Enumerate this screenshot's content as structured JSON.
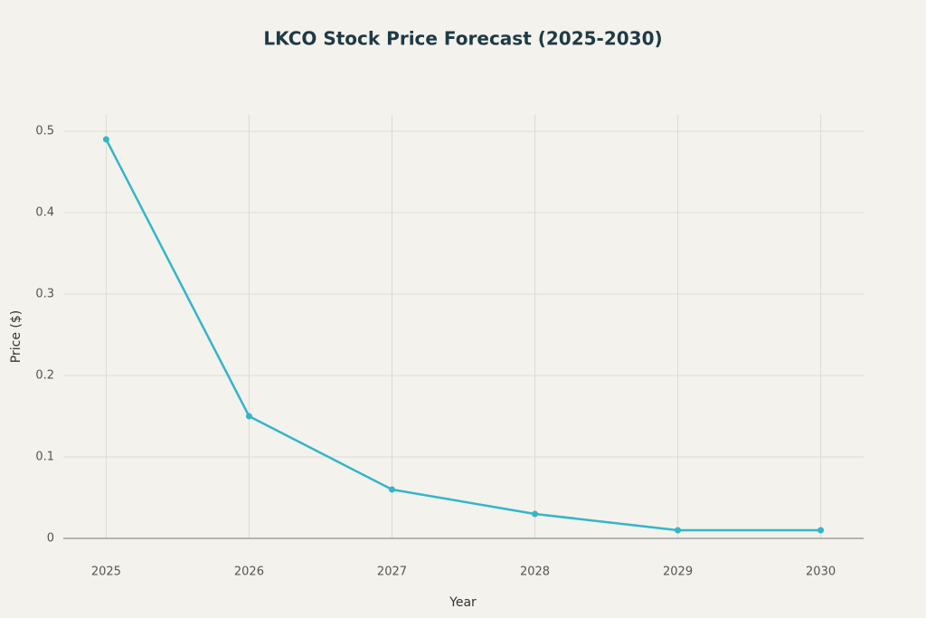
{
  "chart_data": {
    "type": "line",
    "title": "LKCO Stock Price Forecast (2025-2030)",
    "x_label": "Year",
    "y_label": "Price ($)",
    "x": [
      2025,
      2026,
      2027,
      2028,
      2029,
      2030
    ],
    "series": [
      {
        "name": "Price",
        "color": "#35b5c8",
        "values": [
          0.49,
          0.15,
          0.06,
          0.03,
          0.01,
          0.01
        ]
      }
    ],
    "xlim": [
      2024.7,
      2030.3
    ],
    "xticks": [
      2025,
      2026,
      2027,
      2028,
      2029,
      2030
    ],
    "ylim": [
      0,
      0.52
    ],
    "yticks": [
      0,
      0.1,
      0.2,
      0.3,
      0.4,
      0.5
    ],
    "grid": true
  }
}
